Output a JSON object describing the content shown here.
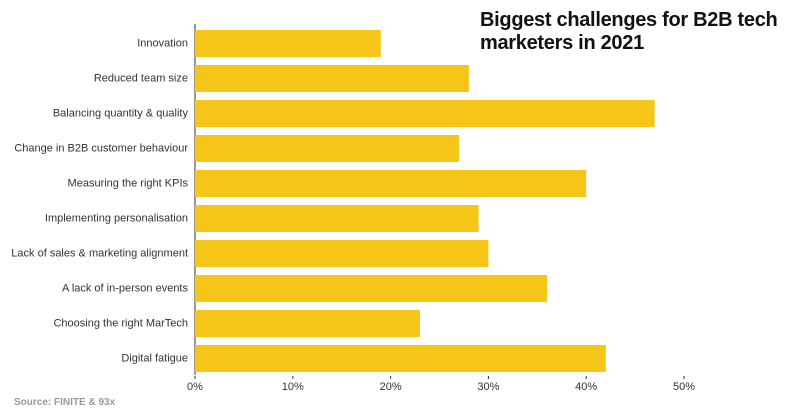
{
  "chart_data": {
    "type": "bar",
    "orientation": "horizontal",
    "title": "Biggest challenges for B2B tech marketers in 2021",
    "source": "Source: FINITE & 93x",
    "categories": [
      "Innovation",
      "Reduced team size",
      "Balancing quantity & quality",
      "Change in B2B customer behaviour",
      "Measuring the right KPIs",
      "Implementing personalisation",
      "Lack of sales & marketing alignment",
      "A lack of in-person events",
      "Choosing the right MarTech",
      "Digital fatigue"
    ],
    "values": [
      19,
      28,
      47,
      27,
      40,
      29,
      30,
      36,
      23,
      42
    ],
    "color": "#f5c518",
    "xlim": [
      0,
      50
    ],
    "xticks": [
      {
        "value": 0,
        "label": "0%"
      },
      {
        "value": 10,
        "label": "10%"
      },
      {
        "value": 20,
        "label": "20%"
      },
      {
        "value": 30,
        "label": "30%"
      },
      {
        "value": 40,
        "label": "40%"
      },
      {
        "value": 50,
        "label": "50%"
      }
    ],
    "grid": false
  }
}
